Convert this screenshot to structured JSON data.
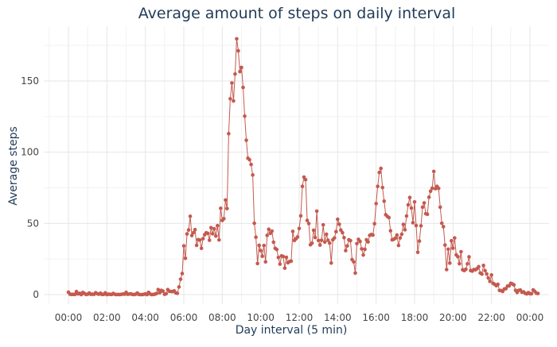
{
  "chart_data": {
    "type": "line",
    "title": "Average amount of steps on daily interval",
    "xlabel": "Day interval (5 min)",
    "ylabel": "Average steps",
    "x_unit": "minutes since 00:00",
    "xlim": [
      0,
      1440
    ],
    "ylim": [
      0,
      185
    ],
    "x_ticks": [
      {
        "value": 0,
        "label": "00:00"
      },
      {
        "value": 120,
        "label": "02:00"
      },
      {
        "value": 240,
        "label": "04:00"
      },
      {
        "value": 360,
        "label": "06:00"
      },
      {
        "value": 480,
        "label": "08:00"
      },
      {
        "value": 600,
        "label": "10:00"
      },
      {
        "value": 720,
        "label": "12:00"
      },
      {
        "value": 840,
        "label": "14:00"
      },
      {
        "value": 960,
        "label": "16:00"
      },
      {
        "value": 1080,
        "label": "18:00"
      },
      {
        "value": 1200,
        "label": "20:00"
      },
      {
        "value": 1320,
        "label": "22:00"
      },
      {
        "value": 1440,
        "label": "00:00"
      }
    ],
    "y_ticks": [
      {
        "value": 0,
        "label": "0"
      },
      {
        "value": 50,
        "label": "50"
      },
      {
        "value": 100,
        "label": "100"
      },
      {
        "value": 150,
        "label": "150"
      }
    ],
    "grid": true,
    "series": [
      {
        "color": "#c45a4f",
        "points": [
          [
            0,
            1.7
          ],
          [
            5,
            0.3
          ],
          [
            10,
            0.1
          ],
          [
            15,
            0.2
          ],
          [
            20,
            0.1
          ],
          [
            25,
            2.1
          ],
          [
            30,
            0.5
          ],
          [
            35,
            0.9
          ],
          [
            40,
            0.0
          ],
          [
            45,
            1.5
          ],
          [
            50,
            0.8
          ],
          [
            55,
            0.1
          ],
          [
            60,
            0.3
          ],
          [
            65,
            1.1
          ],
          [
            70,
            0.2
          ],
          [
            75,
            0.3
          ],
          [
            80,
            0.2
          ],
          [
            85,
            1.3
          ],
          [
            90,
            0.6
          ],
          [
            95,
            0.3
          ],
          [
            100,
            1.0
          ],
          [
            105,
            0.1
          ],
          [
            110,
            0.2
          ],
          [
            115,
            1.2
          ],
          [
            120,
            0.0
          ],
          [
            125,
            0.3
          ],
          [
            130,
            0.2
          ],
          [
            135,
            0.1
          ],
          [
            140,
            0.8
          ],
          [
            145,
            0.2
          ],
          [
            150,
            0.0
          ],
          [
            155,
            0.1
          ],
          [
            160,
            0.0
          ],
          [
            165,
            0.2
          ],
          [
            170,
            0.4
          ],
          [
            175,
            0.3
          ],
          [
            180,
            1.6
          ],
          [
            185,
            0.2
          ],
          [
            190,
            0.4
          ],
          [
            195,
            0.5
          ],
          [
            200,
            0.1
          ],
          [
            205,
            0.0
          ],
          [
            210,
            0.3
          ],
          [
            215,
            1.1
          ],
          [
            220,
            0.1
          ],
          [
            225,
            0.0
          ],
          [
            230,
            0.0
          ],
          [
            235,
            0.2
          ],
          [
            240,
            0.5
          ],
          [
            245,
            0.0
          ],
          [
            250,
            1.6
          ],
          [
            255,
            0.4
          ],
          [
            260,
            0.0
          ],
          [
            265,
            0.1
          ],
          [
            270,
            0.3
          ],
          [
            275,
            0.8
          ],
          [
            280,
            3.5
          ],
          [
            285,
            1.3
          ],
          [
            290,
            3.0
          ],
          [
            295,
            2.4
          ],
          [
            300,
            0.2
          ],
          [
            305,
            0.6
          ],
          [
            310,
            3.5
          ],
          [
            315,
            2.3
          ],
          [
            320,
            2.2
          ],
          [
            325,
            2.1
          ],
          [
            330,
            2.6
          ],
          [
            335,
            1.2
          ],
          [
            340,
            0.9
          ],
          [
            345,
            5.4
          ],
          [
            350,
            10.8
          ],
          [
            355,
            14.8
          ],
          [
            360,
            34.2
          ],
          [
            365,
            25.5
          ],
          [
            370,
            42.6
          ],
          [
            375,
            45.4
          ],
          [
            380,
            55.0
          ],
          [
            385,
            41.5
          ],
          [
            390,
            43.5
          ],
          [
            395,
            45.6
          ],
          [
            400,
            34.6
          ],
          [
            405,
            38.6
          ],
          [
            410,
            38.3
          ],
          [
            415,
            32.5
          ],
          [
            420,
            39.3
          ],
          [
            425,
            42.0
          ],
          [
            430,
            43.4
          ],
          [
            435,
            43.0
          ],
          [
            440,
            38.2
          ],
          [
            445,
            47.0
          ],
          [
            450,
            42.7
          ],
          [
            455,
            46.2
          ],
          [
            460,
            41.1
          ],
          [
            465,
            48.4
          ],
          [
            470,
            38.4
          ],
          [
            475,
            60.6
          ],
          [
            480,
            52.1
          ],
          [
            485,
            53.3
          ],
          [
            490,
            66.4
          ],
          [
            495,
            60.4
          ],
          [
            500,
            113.0
          ],
          [
            505,
            137.5
          ],
          [
            510,
            148.6
          ],
          [
            515,
            136.0
          ],
          [
            520,
            154.9
          ],
          [
            525,
            179.6
          ],
          [
            530,
            171.2
          ],
          [
            535,
            156.6
          ],
          [
            540,
            159.5
          ],
          [
            545,
            145.5
          ],
          [
            550,
            125.3
          ],
          [
            555,
            108.4
          ],
          [
            560,
            95.8
          ],
          [
            565,
            94.7
          ],
          [
            570,
            91.4
          ],
          [
            575,
            84.0
          ],
          [
            580,
            50.1
          ],
          [
            585,
            40.3
          ],
          [
            590,
            21.8
          ],
          [
            595,
            34.6
          ],
          [
            600,
            30.9
          ],
          [
            605,
            26.9
          ],
          [
            610,
            34.5
          ],
          [
            615,
            23.0
          ],
          [
            620,
            41.6
          ],
          [
            625,
            45.9
          ],
          [
            630,
            43.0
          ],
          [
            635,
            44.6
          ],
          [
            640,
            36.8
          ],
          [
            645,
            32.5
          ],
          [
            650,
            31.7
          ],
          [
            655,
            26.1
          ],
          [
            660,
            21.4
          ],
          [
            665,
            27.2
          ],
          [
            670,
            26.8
          ],
          [
            675,
            18.6
          ],
          [
            680,
            26.2
          ],
          [
            685,
            22.4
          ],
          [
            690,
            23.2
          ],
          [
            695,
            23.5
          ],
          [
            700,
            44.4
          ],
          [
            705,
            38.0
          ],
          [
            710,
            39.2
          ],
          [
            715,
            40.5
          ],
          [
            720,
            46.4
          ],
          [
            725,
            55.3
          ],
          [
            730,
            76.0
          ],
          [
            735,
            82.5
          ],
          [
            740,
            80.7
          ],
          [
            745,
            52.1
          ],
          [
            750,
            49.9
          ],
          [
            755,
            35.0
          ],
          [
            760,
            36.1
          ],
          [
            765,
            45.2
          ],
          [
            770,
            40.1
          ],
          [
            775,
            58.6
          ],
          [
            780,
            38.0
          ],
          [
            785,
            34.8
          ],
          [
            790,
            38.2
          ],
          [
            795,
            49.0
          ],
          [
            800,
            36.9
          ],
          [
            805,
            42.4
          ],
          [
            810,
            38.2
          ],
          [
            815,
            36.2
          ],
          [
            820,
            22.2
          ],
          [
            825,
            38.5
          ],
          [
            830,
            39.8
          ],
          [
            835,
            44.2
          ],
          [
            840,
            52.9
          ],
          [
            845,
            49.4
          ],
          [
            850,
            45.3
          ],
          [
            855,
            43.5
          ],
          [
            860,
            40.0
          ],
          [
            865,
            30.9
          ],
          [
            870,
            34.2
          ],
          [
            875,
            38.5
          ],
          [
            880,
            37.9
          ],
          [
            885,
            24.6
          ],
          [
            890,
            23.0
          ],
          [
            895,
            15.1
          ],
          [
            900,
            35.8
          ],
          [
            905,
            38.8
          ],
          [
            910,
            37.3
          ],
          [
            915,
            32.1
          ],
          [
            920,
            27.8
          ],
          [
            925,
            31.8
          ],
          [
            930,
            38.5
          ],
          [
            935,
            37.0
          ],
          [
            940,
            41.6
          ],
          [
            945,
            42.2
          ],
          [
            950,
            41.8
          ],
          [
            955,
            49.8
          ],
          [
            960,
            63.9
          ],
          [
            965,
            76.0
          ],
          [
            970,
            85.8
          ],
          [
            975,
            88.6
          ],
          [
            980,
            75.2
          ],
          [
            985,
            65.6
          ],
          [
            990,
            56.1
          ],
          [
            995,
            54.9
          ],
          [
            1000,
            54.1
          ],
          [
            1005,
            44.8
          ],
          [
            1010,
            38.5
          ],
          [
            1015,
            38.8
          ],
          [
            1020,
            39.6
          ],
          [
            1025,
            41.8
          ],
          [
            1030,
            34.5
          ],
          [
            1035,
            39.8
          ],
          [
            1040,
            42.4
          ],
          [
            1045,
            49.3
          ],
          [
            1050,
            45.5
          ],
          [
            1055,
            55.2
          ],
          [
            1060,
            63.0
          ],
          [
            1065,
            68.2
          ],
          [
            1070,
            60.8
          ],
          [
            1075,
            50.5
          ],
          [
            1080,
            65.1
          ],
          [
            1085,
            48.5
          ],
          [
            1090,
            29.7
          ],
          [
            1095,
            37.6
          ],
          [
            1100,
            48.3
          ],
          [
            1105,
            61.4
          ],
          [
            1110,
            64.4
          ],
          [
            1115,
            56.8
          ],
          [
            1120,
            56.4
          ],
          [
            1125,
            68.4
          ],
          [
            1130,
            72.6
          ],
          [
            1135,
            74.7
          ],
          [
            1140,
            86.5
          ],
          [
            1145,
            74.4
          ],
          [
            1150,
            76.0
          ],
          [
            1155,
            74.6
          ],
          [
            1160,
            61.4
          ],
          [
            1165,
            50.1
          ],
          [
            1170,
            47.7
          ],
          [
            1175,
            34.8
          ],
          [
            1180,
            17.6
          ],
          [
            1185,
            31.9
          ],
          [
            1190,
            22.1
          ],
          [
            1195,
            37.8
          ],
          [
            1200,
            32.6
          ],
          [
            1205,
            39.8
          ],
          [
            1210,
            27.9
          ],
          [
            1215,
            26.6
          ],
          [
            1220,
            21.7
          ],
          [
            1225,
            30.1
          ],
          [
            1230,
            17.4
          ],
          [
            1235,
            16.9
          ],
          [
            1240,
            17.8
          ],
          [
            1245,
            21.6
          ],
          [
            1250,
            26.5
          ],
          [
            1255,
            16.9
          ],
          [
            1260,
            16.5
          ],
          [
            1265,
            17.6
          ],
          [
            1270,
            17.4
          ],
          [
            1275,
            18.2
          ],
          [
            1280,
            19.6
          ],
          [
            1285,
            15.2
          ],
          [
            1290,
            14.4
          ],
          [
            1295,
            20.5
          ],
          [
            1300,
            16.8
          ],
          [
            1305,
            14.5
          ],
          [
            1310,
            11.7
          ],
          [
            1315,
            9.3
          ],
          [
            1320,
            13.8
          ],
          [
            1325,
            7.9
          ],
          [
            1330,
            7.2
          ],
          [
            1335,
            6.3
          ],
          [
            1340,
            7.2
          ],
          [
            1345,
            2.9
          ],
          [
            1350,
            2.8
          ],
          [
            1355,
            2.2
          ],
          [
            1360,
            3.9
          ],
          [
            1365,
            4.2
          ],
          [
            1370,
            6.0
          ],
          [
            1375,
            6.1
          ],
          [
            1380,
            7.9
          ],
          [
            1385,
            7.5
          ],
          [
            1390,
            6.8
          ],
          [
            1395,
            3.0
          ],
          [
            1400,
            1.5
          ],
          [
            1405,
            3.0
          ],
          [
            1410,
            3.2
          ],
          [
            1415,
            1.7
          ],
          [
            1420,
            1.9
          ],
          [
            1425,
            0.9
          ],
          [
            1430,
            0.5
          ],
          [
            1435,
            1.4
          ],
          [
            1440,
            0.6
          ],
          [
            1445,
            0.6
          ],
          [
            1450,
            3.3
          ],
          [
            1455,
            2.3
          ],
          [
            1460,
            1.0
          ],
          [
            1465,
            0.8
          ]
        ]
      }
    ]
  }
}
